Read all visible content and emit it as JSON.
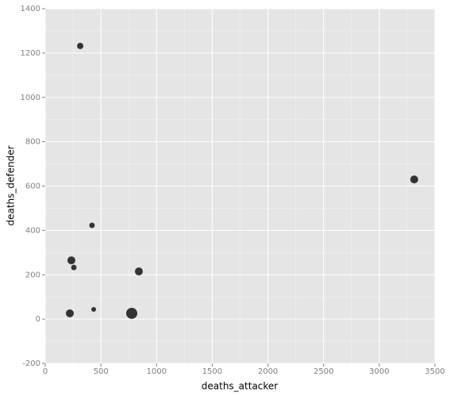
{
  "chart_data": {
    "type": "scatter",
    "x_label": "deaths_attacker",
    "y_label": "deaths_defender",
    "x": [
      314,
      3314,
      420,
      235,
      257,
      841,
      435,
      221,
      777
    ],
    "y": [
      1232,
      630,
      423,
      265,
      233,
      215,
      44,
      26,
      26
    ],
    "sizes": [
      16,
      25,
      12,
      25,
      12,
      25,
      9,
      25,
      49
    ],
    "color": "#333333",
    "xlim": [
      0,
      3500
    ],
    "ylim": [
      -200,
      1400
    ],
    "xticks": [
      0,
      500,
      1000,
      1500,
      2000,
      2500,
      3000,
      3500
    ],
    "yticks": [
      -200,
      0,
      200,
      400,
      600,
      800,
      1000,
      1200,
      1400
    ],
    "grid": true
  }
}
